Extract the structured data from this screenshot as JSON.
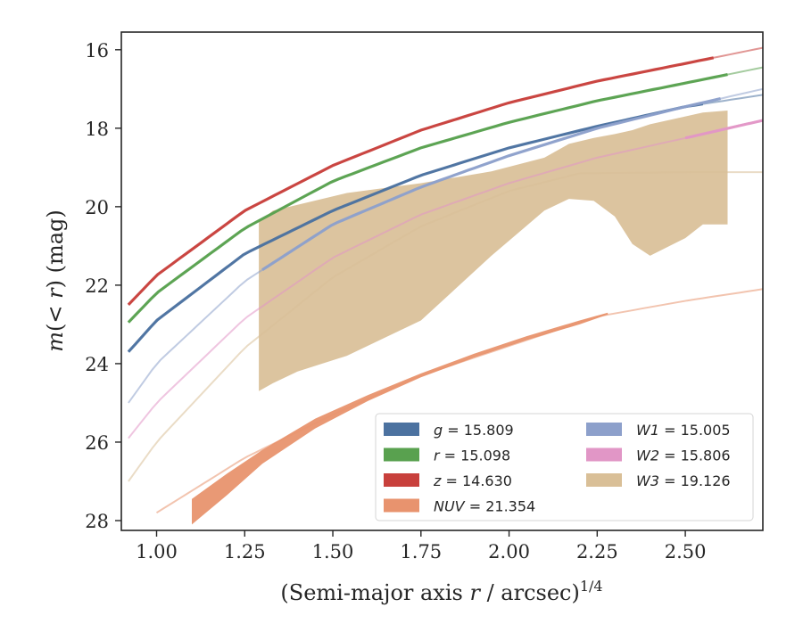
{
  "chart_data": {
    "type": "line",
    "xlabel": "(Semi-major axis r / arcsec)^{1/4}",
    "ylabel": "m(< r) (mag)",
    "xlim": [
      0.9,
      2.72
    ],
    "ylim": [
      28.25,
      15.55
    ],
    "y_inverted": true,
    "x_ticks": [
      "1.00",
      "1.25",
      "1.50",
      "1.75",
      "2.00",
      "2.25",
      "2.50"
    ],
    "y_ticks": [
      "16",
      "18",
      "20",
      "22",
      "24",
      "26",
      "28"
    ],
    "legend_position": "lower-right",
    "series": [
      {
        "name": "g = 15.809",
        "legend_var": "g",
        "legend_value": "15.809",
        "color": "#4c72a0",
        "model_x": [
          0.92,
          1.0,
          1.25,
          1.5,
          1.75,
          2.0,
          2.25,
          2.5,
          2.72
        ],
        "model_y": [
          23.7,
          22.9,
          21.2,
          20.1,
          19.2,
          18.5,
          17.95,
          17.45,
          17.15
        ],
        "data_x_range": [
          0.92,
          2.55
        ]
      },
      {
        "name": "r = 15.098",
        "legend_var": "r",
        "legend_value": "15.098",
        "color": "#59a14f",
        "model_x": [
          0.92,
          1.0,
          1.25,
          1.5,
          1.75,
          2.0,
          2.25,
          2.5,
          2.72
        ],
        "model_y": [
          22.95,
          22.2,
          20.55,
          19.35,
          18.5,
          17.85,
          17.3,
          16.85,
          16.45
        ],
        "data_x_range": [
          0.92,
          2.62
        ]
      },
      {
        "name": "z = 14.630",
        "legend_var": "z",
        "legend_value": "14.630",
        "color": "#c8403c",
        "model_x": [
          0.92,
          1.0,
          1.25,
          1.5,
          1.75,
          2.0,
          2.25,
          2.5,
          2.72
        ],
        "model_y": [
          22.5,
          21.75,
          20.1,
          18.95,
          18.05,
          17.35,
          16.8,
          16.35,
          15.95
        ],
        "data_x_range": [
          0.92,
          2.58
        ]
      },
      {
        "name": "NUV = 21.354",
        "legend_var": "NUV",
        "legend_value": "21.354",
        "color": "#e8936e",
        "model_x": [
          1.0,
          1.25,
          1.5,
          1.75,
          2.0,
          2.25,
          2.5,
          2.72
        ],
        "model_y": [
          27.8,
          26.4,
          25.3,
          24.3,
          23.55,
          22.8,
          22.4,
          22.1
        ],
        "band_x": [
          1.1,
          1.2,
          1.3,
          1.45,
          1.6,
          1.75,
          1.9,
          2.05,
          2.2,
          2.28
        ],
        "band_upper": [
          27.45,
          26.8,
          26.2,
          25.4,
          24.8,
          24.25,
          23.75,
          23.3,
          22.9,
          22.7
        ],
        "band_lower": [
          28.1,
          27.35,
          26.55,
          25.65,
          24.95,
          24.35,
          23.85,
          23.4,
          23.0,
          22.75
        ]
      },
      {
        "name": "W1 = 15.005",
        "legend_var": "W1",
        "legend_value": "15.005",
        "color": "#8da0cb",
        "model_x": [
          0.92,
          1.0,
          1.25,
          1.5,
          1.75,
          2.0,
          2.25,
          2.5,
          2.72
        ],
        "model_y": [
          25.0,
          24.0,
          21.9,
          20.45,
          19.5,
          18.7,
          18.0,
          17.45,
          17.0
        ],
        "data_x_range": [
          1.3,
          2.6
        ]
      },
      {
        "name": "W2 = 15.806",
        "legend_var": "W2",
        "legend_value": "15.806",
        "color": "#e196c6",
        "model_x": [
          0.92,
          1.0,
          1.25,
          1.5,
          1.75,
          2.0,
          2.25,
          2.5,
          2.72
        ],
        "model_y": [
          25.9,
          25.0,
          22.85,
          21.3,
          20.2,
          19.4,
          18.75,
          18.25,
          17.8
        ],
        "data_x_range": [
          2.5,
          2.72
        ]
      },
      {
        "name": "W3 = 19.126",
        "legend_var": "W3",
        "legend_value": "19.126",
        "color": "#d9bf97",
        "model_x": [
          0.92,
          1.0,
          1.25,
          1.5,
          1.75,
          2.0,
          2.2,
          2.5,
          2.72
        ],
        "model_y": [
          27.0,
          26.0,
          23.6,
          21.8,
          20.5,
          19.6,
          19.15,
          19.12,
          19.12
        ],
        "band_x": [
          1.29,
          1.33,
          1.4,
          1.54,
          1.75,
          1.95,
          2.1,
          2.17,
          2.24,
          2.3,
          2.35,
          2.4,
          2.5,
          2.55,
          2.62
        ],
        "band_upper": [
          20.4,
          20.1,
          19.95,
          19.65,
          19.4,
          19.1,
          18.75,
          18.4,
          18.25,
          18.15,
          18.05,
          17.9,
          17.7,
          17.6,
          17.55
        ],
        "band_lower": [
          24.7,
          24.5,
          24.2,
          23.8,
          22.9,
          21.25,
          20.1,
          19.8,
          19.85,
          20.25,
          20.95,
          21.25,
          20.8,
          20.45,
          20.45
        ]
      }
    ]
  }
}
